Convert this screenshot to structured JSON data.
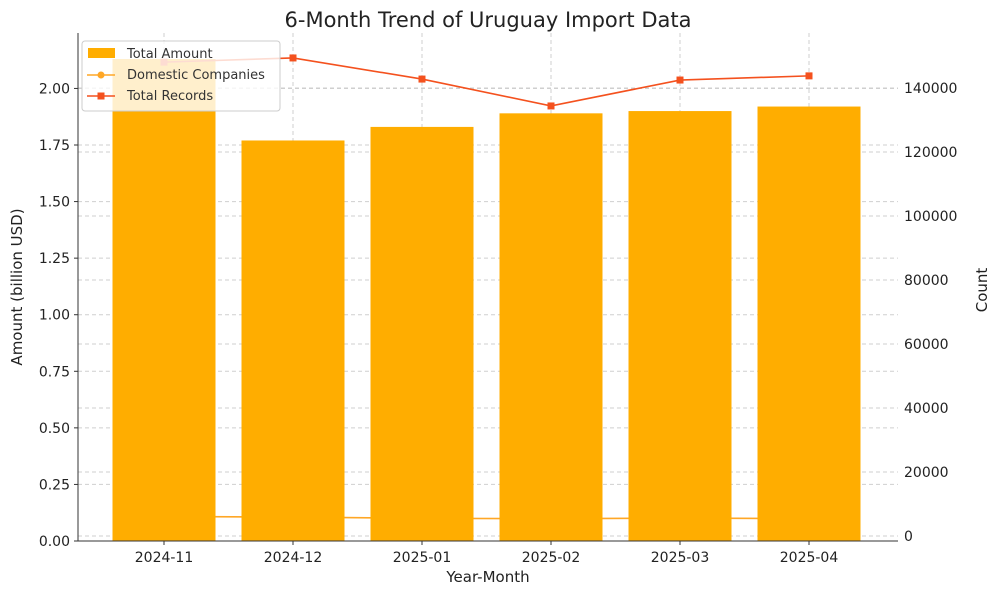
{
  "chart_data": {
    "type": "bar",
    "title": "6-Month Trend of Uruguay Import Data",
    "xlabel": "Year-Month",
    "ylabel": "Amount (billion USD)",
    "y2label": "Count",
    "categories": [
      "2024-11",
      "2024-12",
      "2025-01",
      "2025-02",
      "2025-03",
      "2025-04"
    ],
    "ylim": [
      0,
      2.245
    ],
    "y2lim": [
      -1570,
      157200
    ],
    "yticks": [
      "0.00",
      "0.25",
      "0.50",
      "0.75",
      "1.00",
      "1.25",
      "1.50",
      "1.75",
      "2.00"
    ],
    "y2ticks": [
      "0",
      "20000",
      "40000",
      "60000",
      "80000",
      "100000",
      "120000",
      "140000"
    ],
    "grid": true,
    "legend_position": "top-left",
    "series": [
      {
        "name": "Total Amount",
        "type": "bar",
        "axis": "left",
        "color": "#FFAD00",
        "values": [
          2.13,
          1.77,
          1.83,
          1.89,
          1.9,
          1.92
        ]
      },
      {
        "name": "Domestic Companies",
        "type": "line",
        "axis": "right",
        "marker": "circle",
        "color": "#FFA726",
        "values": [
          6100,
          5900,
          5500,
          5400,
          5600,
          5400
        ]
      },
      {
        "name": "Total Records",
        "type": "line",
        "axis": "right",
        "marker": "square",
        "color": "#F4511E",
        "values": [
          148100,
          149400,
          142800,
          134400,
          142500,
          143800
        ]
      }
    ]
  }
}
